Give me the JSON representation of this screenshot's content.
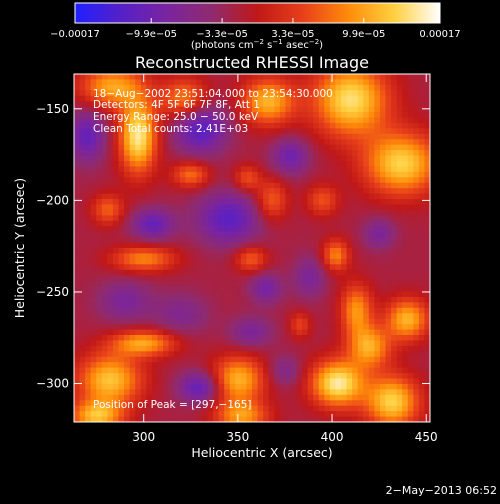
{
  "chart_data": {
    "type": "heatmap",
    "title": "Reconstructed RHESSI Image",
    "xlabel": "Heliocentric X (arcsec)",
    "ylabel": "Heliocentric Y (arcsec)",
    "xlim": [
      263,
      452
    ],
    "ylim": [
      -321,
      -131
    ],
    "x_ticks": [
      300,
      350,
      400,
      450
    ],
    "x_tick_labels": [
      "300",
      "350",
      "400",
      "450"
    ],
    "y_ticks": [
      -150,
      -200,
      -250,
      -300
    ],
    "y_tick_labels": [
      "−150",
      "−200",
      "−250",
      "−300"
    ],
    "colorbar": {
      "range": [
        -0.00017,
        0.00017
      ],
      "ticks": [
        -0.00017,
        -9.9e-05,
        -3.3e-05,
        3.3e-05,
        9.9e-05,
        0.00017
      ],
      "tick_labels": [
        "−0.00017",
        "−9.9e−05",
        "−3.3e−05",
        "3.3e−05",
        "9.9e−05",
        "0.00017"
      ],
      "units": {
        "prefix": "(photons cm",
        "exp1": "−2",
        "mid1": " s",
        "exp2": "−1",
        "mid2": " asec",
        "exp3": "−2",
        "suffix": ")"
      },
      "colors": [
        "#2020ff",
        "#5520c8",
        "#7a24a0",
        "#8f2b6e",
        "#c01818",
        "#e8401a",
        "#ff8c0a",
        "#ffd040",
        "#ffffff"
      ]
    },
    "info_lines": [
      "18−Aug−2002 23:51:04.000 to 23:54:30.000",
      "Detectors: 4F 5F 6F 7F 8F, Att 1",
      "Energy Range: 25.0 − 50.0 keV",
      "Clean  Total counts: 2.41E+03"
    ],
    "peak_text": "Position of Peak = [297,−165]",
    "peak": [
      297,
      -165
    ],
    "sources": [
      {
        "x": 297,
        "y": -165,
        "sx": 7,
        "sy": 14,
        "value": 0.00017
      },
      {
        "x": 283,
        "y": -138,
        "sx": 12,
        "sy": 8,
        "value": 0.00012
      },
      {
        "x": 322,
        "y": -145,
        "sx": 9,
        "sy": 8,
        "value": 0.00011
      },
      {
        "x": 366,
        "y": -146,
        "sx": 10,
        "sy": 9,
        "value": 0.00013
      },
      {
        "x": 410,
        "y": -145,
        "sx": 14,
        "sy": 14,
        "value": 0.00016
      },
      {
        "x": 437,
        "y": -180,
        "sx": 14,
        "sy": 12,
        "value": 0.00015
      },
      {
        "x": 395,
        "y": -200,
        "sx": 6,
        "sy": 6,
        "value": 7e-05
      },
      {
        "x": 368,
        "y": -200,
        "sx": 6,
        "sy": 8,
        "value": 8e-05
      },
      {
        "x": 355,
        "y": -188,
        "sx": 5,
        "sy": 5,
        "value": 7e-05
      },
      {
        "x": 325,
        "y": -186,
        "sx": 7,
        "sy": 5,
        "value": 9e-05
      },
      {
        "x": 281,
        "y": -205,
        "sx": 6,
        "sy": 6,
        "value": 8e-05
      },
      {
        "x": 300,
        "y": -232,
        "sx": 12,
        "sy": 5,
        "value": 0.0001
      },
      {
        "x": 357,
        "y": -232,
        "sx": 6,
        "sy": 5,
        "value": 8e-05
      },
      {
        "x": 402,
        "y": -230,
        "sx": 5,
        "sy": 6,
        "value": 0.0001
      },
      {
        "x": 413,
        "y": -260,
        "sx": 6,
        "sy": 10,
        "value": 0.00011
      },
      {
        "x": 383,
        "y": -268,
        "sx": 4,
        "sy": 5,
        "value": 6e-05
      },
      {
        "x": 440,
        "y": -265,
        "sx": 8,
        "sy": 8,
        "value": 0.00013
      },
      {
        "x": 300,
        "y": -278,
        "sx": 12,
        "sy": 5,
        "value": 0.00012
      },
      {
        "x": 282,
        "y": -298,
        "sx": 12,
        "sy": 10,
        "value": 0.00014
      },
      {
        "x": 275,
        "y": -318,
        "sx": 10,
        "sy": 6,
        "value": 0.00013
      },
      {
        "x": 350,
        "y": -298,
        "sx": 10,
        "sy": 9,
        "value": 0.00013
      },
      {
        "x": 352,
        "y": -318,
        "sx": 10,
        "sy": 6,
        "value": 0.00011
      },
      {
        "x": 403,
        "y": -300,
        "sx": 10,
        "sy": 9,
        "value": 0.00017
      },
      {
        "x": 432,
        "y": -310,
        "sx": 10,
        "sy": 10,
        "value": 0.00015
      },
      {
        "x": 420,
        "y": -280,
        "sx": 8,
        "sy": 8,
        "value": 0.00012
      },
      {
        "x": 330,
        "y": -160,
        "sx": 10,
        "sy": 10,
        "value": -0.00011
      },
      {
        "x": 345,
        "y": -210,
        "sx": 12,
        "sy": 10,
        "value": -0.0001
      },
      {
        "x": 305,
        "y": -213,
        "sx": 8,
        "sy": 6,
        "value": -9e-05
      },
      {
        "x": 270,
        "y": -165,
        "sx": 7,
        "sy": 10,
        "value": -9e-05
      },
      {
        "x": 378,
        "y": -176,
        "sx": 7,
        "sy": 7,
        "value": -8e-05
      },
      {
        "x": 290,
        "y": -255,
        "sx": 10,
        "sy": 8,
        "value": -6e-05
      },
      {
        "x": 320,
        "y": -262,
        "sx": 10,
        "sy": 8,
        "value": -5e-05
      },
      {
        "x": 357,
        "y": -272,
        "sx": 8,
        "sy": 6,
        "value": -6e-05
      },
      {
        "x": 330,
        "y": -302,
        "sx": 8,
        "sy": 6,
        "value": -0.0001
      },
      {
        "x": 365,
        "y": -248,
        "sx": 6,
        "sy": 6,
        "value": -7e-05
      },
      {
        "x": 388,
        "y": -242,
        "sx": 6,
        "sy": 8,
        "value": -6e-05
      },
      {
        "x": 425,
        "y": -218,
        "sx": 6,
        "sy": 6,
        "value": -6e-05
      },
      {
        "x": 375,
        "y": -293,
        "sx": 6,
        "sy": 6,
        "value": -5e-05
      }
    ]
  },
  "timestamp": "2−May−2013 06:52"
}
